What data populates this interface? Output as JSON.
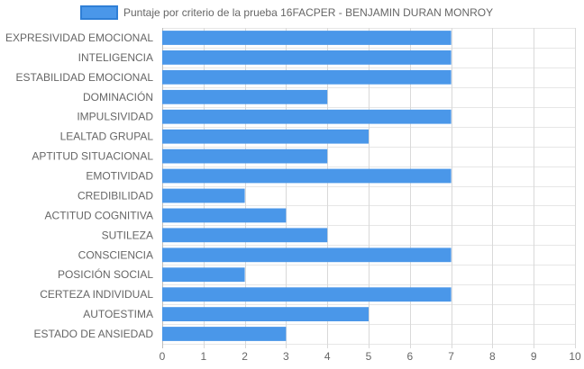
{
  "chart_data": {
    "type": "bar",
    "orientation": "horizontal",
    "title": "",
    "xlabel": "",
    "ylabel": "",
    "xlim": [
      0,
      10
    ],
    "x_ticks": [
      "0",
      "1",
      "2",
      "3",
      "4",
      "5",
      "6",
      "7",
      "8",
      "9",
      "10"
    ],
    "grid": true,
    "legend_position": "top",
    "categories": [
      "EXPRESIVIDAD EMOCIONAL",
      "INTELIGENCIA",
      "ESTABILIDAD EMOCIONAL",
      "DOMINACIÓN",
      "IMPULSIVIDAD",
      "LEALTAD GRUPAL",
      "APTITUD SITUACIONAL",
      "EMOTIVIDAD",
      "CREDIBILIDAD",
      "ACTITUD COGNITIVA",
      "SUTILEZA",
      "CONSCIENCIA",
      "POSICIÓN SOCIAL",
      "CERTEZA INDIVIDUAL",
      "AUTOESTIMA",
      "ESTADO DE ANSIEDAD"
    ],
    "series": [
      {
        "name": "Puntaje por criterio de la prueba 16FACPER - BENJAMIN DURAN MONROY",
        "color": "#4a97e9",
        "border_color": "#2f7fd6",
        "values": [
          7,
          7,
          7,
          4,
          7,
          5,
          4,
          7,
          2,
          3,
          4,
          7,
          2,
          7,
          5,
          3
        ]
      }
    ]
  }
}
